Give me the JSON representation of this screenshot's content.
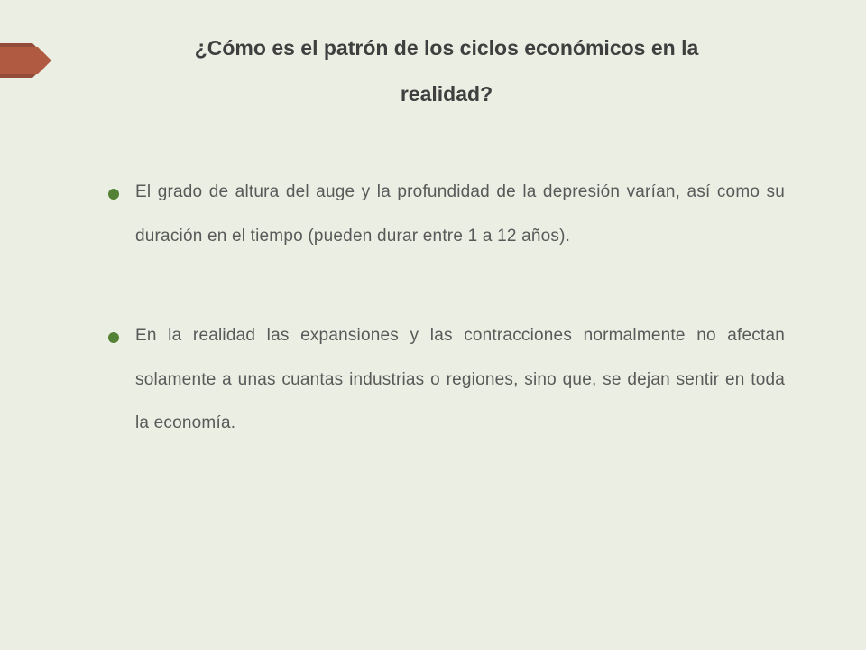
{
  "slide": {
    "title": "¿Cómo es el patrón de los ciclos económicos en la realidad?",
    "bullets": [
      "El grado de altura del auge y la profundidad de la depresión varían, así como su duración en el tiempo (pueden durar entre 1 a 12 años).",
      "En la realidad las expansiones y las contracciones normalmente no afectan solamente a unas cuantas industrias o regiones, sino que, se dejan sentir en toda la economía."
    ]
  },
  "colors": {
    "background": "#ebeee3",
    "title_text": "#3f3f3f",
    "body_text": "#595959",
    "bullet": "#548235",
    "ribbon_front": "#b05a42",
    "ribbon_back": "#944c3a"
  }
}
